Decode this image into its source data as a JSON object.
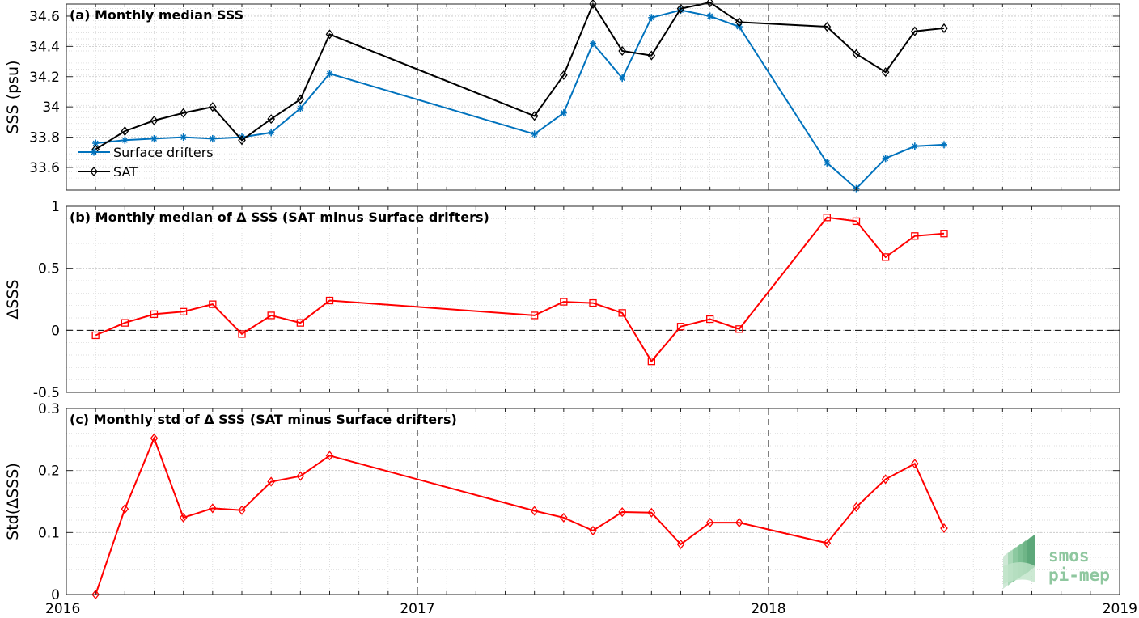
{
  "x_axis": {
    "ticks": [
      {
        "label": "2016",
        "month": 0
      },
      {
        "label": "2017",
        "month": 12
      },
      {
        "label": "2018",
        "month": 24
      },
      {
        "label": "2019",
        "month": 36
      }
    ],
    "xlim_months_since_2016_01": [
      0,
      36
    ]
  },
  "logo": {
    "line1": "smos",
    "line2": "pi-mep"
  },
  "colors": {
    "drifters": "#0072bd",
    "sat": "#000000",
    "delta": "#ff0000",
    "grid": "#d0d0d0"
  },
  "chart_data": [
    {
      "type": "line",
      "title": "(a) Monthly median SSS",
      "ylabel": "SSS (psu)",
      "ylim": [
        33.45,
        34.68
      ],
      "yticks": [
        33.6,
        33.8,
        34,
        34.2,
        34.4,
        34.6
      ],
      "ytick_labels": [
        "33.6",
        "33.8",
        "34",
        "34.2",
        "34.4",
        "34.6"
      ],
      "grid": true,
      "legend_position": "bottom-left",
      "series": [
        {
          "name": "Surface drifters",
          "marker": "asterisk",
          "color": "#0072bd",
          "x": [
            "2016-02",
            "2016-03",
            "2016-04",
            "2016-05",
            "2016-06",
            "2016-07",
            "2016-08",
            "2016-09",
            "2016-10",
            "2017-05",
            "2017-06",
            "2017-07",
            "2017-08",
            "2017-09",
            "2017-10",
            "2017-11",
            "2017-12",
            "2018-03",
            "2018-04",
            "2018-05",
            "2018-06",
            "2018-07"
          ],
          "values": [
            33.76,
            33.78,
            33.79,
            33.8,
            33.79,
            33.8,
            33.83,
            33.99,
            34.22,
            33.82,
            33.96,
            34.42,
            34.19,
            34.59,
            34.64,
            34.6,
            34.53,
            33.63,
            33.46,
            33.66,
            33.74,
            33.75
          ]
        },
        {
          "name": "SAT",
          "marker": "diamond",
          "color": "#000000",
          "x": [
            "2016-02",
            "2016-03",
            "2016-04",
            "2016-05",
            "2016-06",
            "2016-07",
            "2016-08",
            "2016-09",
            "2016-10",
            "2017-05",
            "2017-06",
            "2017-07",
            "2017-08",
            "2017-09",
            "2017-10",
            "2017-11",
            "2017-12",
            "2018-03",
            "2018-04",
            "2018-05",
            "2018-06",
            "2018-07"
          ],
          "values": [
            33.72,
            33.84,
            33.91,
            33.96,
            34.0,
            33.78,
            33.92,
            34.05,
            34.48,
            33.94,
            34.21,
            34.68,
            34.37,
            34.34,
            34.65,
            34.69,
            34.56,
            34.53,
            34.35,
            34.23,
            34.5,
            34.52
          ]
        }
      ]
    },
    {
      "type": "line",
      "title": "(b) Monthly median of Δ SSS (SAT minus Surface drifters)",
      "ylabel": "ΔSSS",
      "ylim": [
        -0.5,
        1
      ],
      "yticks": [
        -0.5,
        0,
        0.5,
        1
      ],
      "ytick_labels": [
        "-0.5",
        "0",
        "0.5",
        "1"
      ],
      "grid": true,
      "zero_line": true,
      "series": [
        {
          "marker": "square",
          "color": "#ff0000",
          "x": [
            "2016-02",
            "2016-03",
            "2016-04",
            "2016-05",
            "2016-06",
            "2016-07",
            "2016-08",
            "2016-09",
            "2016-10",
            "2017-05",
            "2017-06",
            "2017-07",
            "2017-08",
            "2017-09",
            "2017-10",
            "2017-11",
            "2017-12",
            "2018-03",
            "2018-04",
            "2018-05",
            "2018-06",
            "2018-07"
          ],
          "values": [
            -0.04,
            0.06,
            0.13,
            0.15,
            0.21,
            -0.03,
            0.12,
            0.06,
            0.24,
            0.12,
            0.23,
            0.22,
            0.14,
            -0.25,
            0.03,
            0.09,
            0.01,
            0.91,
            0.88,
            0.59,
            0.76,
            0.78
          ]
        }
      ]
    },
    {
      "type": "line",
      "title": "(c) Monthly std of Δ SSS (SAT minus Surface drifters)",
      "ylabel": "Std(ΔSSS)",
      "ylim": [
        0,
        0.3
      ],
      "yticks": [
        0,
        0.1,
        0.2,
        0.3
      ],
      "ytick_labels": [
        "0",
        "0.1",
        "0.2",
        "0.3"
      ],
      "grid": true,
      "series": [
        {
          "marker": "diamond",
          "color": "#ff0000",
          "x": [
            "2016-02",
            "2016-03",
            "2016-04",
            "2016-05",
            "2016-06",
            "2016-07",
            "2016-08",
            "2016-09",
            "2016-10",
            "2017-05",
            "2017-06",
            "2017-07",
            "2017-08",
            "2017-09",
            "2017-10",
            "2017-11",
            "2017-12",
            "2018-03",
            "2018-04",
            "2018-05",
            "2018-06",
            "2018-07"
          ],
          "values": [
            0.0,
            0.138,
            0.252,
            0.124,
            0.139,
            0.136,
            0.182,
            0.191,
            0.224,
            0.135,
            0.124,
            0.103,
            0.133,
            0.132,
            0.081,
            0.116,
            0.116,
            0.083,
            0.141,
            0.186,
            0.211,
            0.107
          ]
        }
      ]
    }
  ]
}
